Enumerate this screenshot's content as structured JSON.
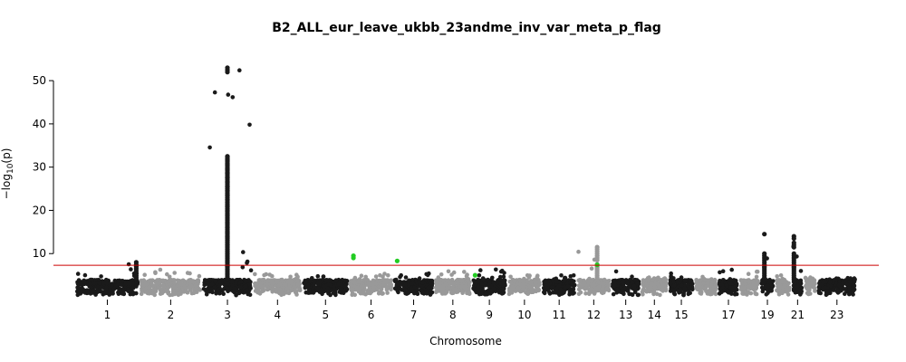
{
  "chart_data": {
    "type": "scatter",
    "title": "B2_ALL_eur_leave_ukbb_23andme_inv_var_meta_p_flag",
    "xlabel": "Chromosome",
    "ylabel_prefix": "−log",
    "ylabel_sub": "10",
    "ylabel_suffix": "(p)",
    "ylim": [
      0,
      54
    ],
    "yticks": [
      10,
      20,
      30,
      40,
      50
    ],
    "significance_threshold": 7.3,
    "threshold_color": "#cc0000",
    "colors": {
      "dark": "#1a1a1a",
      "light": "#999999",
      "flagged": "#22cc22"
    },
    "chromosomes": [
      {
        "chr": "1",
        "start": 0,
        "end": 249,
        "label": "1",
        "shade": "dark",
        "max": 8.0
      },
      {
        "chr": "2",
        "start": 249,
        "end": 491,
        "label": "2",
        "shade": "light",
        "max": 6.5
      },
      {
        "chr": "3",
        "start": 491,
        "end": 689,
        "label": "3",
        "shade": "dark",
        "max": 53.0
      },
      {
        "chr": "4",
        "start": 689,
        "end": 879,
        "label": "4",
        "shade": "light",
        "max": 5.5
      },
      {
        "chr": "5",
        "start": 879,
        "end": 1061,
        "label": "5",
        "shade": "dark",
        "max": 5.5
      },
      {
        "chr": "6",
        "start": 1061,
        "end": 1232,
        "label": "6",
        "shade": "light",
        "max": 5.5
      },
      {
        "chr": "7",
        "start": 1232,
        "end": 1391,
        "label": "7",
        "shade": "dark",
        "max": 5.5
      },
      {
        "chr": "8",
        "start": 1391,
        "end": 1536,
        "label": "8",
        "shade": "light",
        "max": 6.0
      },
      {
        "chr": "9",
        "start": 1536,
        "end": 1674,
        "label": "9",
        "shade": "dark",
        "max": 6.5
      },
      {
        "chr": "10",
        "start": 1674,
        "end": 1808,
        "label": "10",
        "shade": "light",
        "max": 5.0
      },
      {
        "chr": "11",
        "start": 1808,
        "end": 1943,
        "label": "11",
        "shade": "dark",
        "max": 5.0
      },
      {
        "chr": "12",
        "start": 1943,
        "end": 2076,
        "label": "12",
        "shade": "light",
        "max": 11.5
      },
      {
        "chr": "13",
        "start": 2076,
        "end": 2191,
        "label": "13",
        "shade": "dark",
        "max": 6.0
      },
      {
        "chr": "14",
        "start": 2191,
        "end": 2298,
        "label": "14",
        "shade": "light",
        "max": 4.5
      },
      {
        "chr": "15",
        "start": 2298,
        "end": 2400,
        "label": "15",
        "shade": "dark",
        "max": 5.5
      },
      {
        "chr": "16",
        "start": 2400,
        "end": 2490,
        "label": "",
        "shade": "light",
        "max": 5.0
      },
      {
        "chr": "17",
        "start": 2490,
        "end": 2573,
        "label": "17",
        "shade": "dark",
        "max": 6.5
      },
      {
        "chr": "18",
        "start": 2573,
        "end": 2653,
        "label": "",
        "shade": "light",
        "max": 6.0
      },
      {
        "chr": "19",
        "start": 2653,
        "end": 2712,
        "label": "19",
        "shade": "dark",
        "max": 14.5
      },
      {
        "chr": "20",
        "start": 2712,
        "end": 2776,
        "label": "",
        "shade": "light",
        "max": 5.5
      },
      {
        "chr": "21",
        "start": 2776,
        "end": 2823,
        "label": "21",
        "shade": "dark",
        "max": 14.0
      },
      {
        "chr": "22",
        "start": 2823,
        "end": 2874,
        "label": "",
        "shade": "light",
        "max": 4.5
      },
      {
        "chr": "23",
        "start": 2874,
        "end": 3030,
        "label": "23",
        "shade": "dark",
        "max": 4.5
      }
    ],
    "peaks": [
      {
        "chr": "1",
        "pos": 0.95,
        "pvals": [
          8.0,
          7.5,
          7.0,
          6.5,
          6.0,
          5.5
        ]
      },
      {
        "chr": "3",
        "pos": 0.5,
        "pvals": [
          53.0,
          52.5,
          52.0,
          32.5,
          31.5,
          30.5,
          29.5,
          28.5,
          27.5,
          26.5,
          25.5,
          24.5,
          23.5,
          22.5,
          21.0,
          20.0,
          19.0,
          18.0,
          17.0,
          16.0,
          15.0,
          14.0,
          13.0,
          12.0,
          11.0,
          10.0,
          9.0,
          8.0,
          7.0
        ]
      },
      {
        "chr": "12",
        "pos": 0.6,
        "pvals": [
          11.5,
          11.0,
          10.5,
          10.0,
          9.5,
          9.0,
          8.5,
          7.5,
          7.0
        ]
      },
      {
        "chr": "19",
        "pos": 0.3,
        "pvals": [
          14.5,
          10.0,
          9.5,
          9.0,
          8.5,
          8.0,
          7.5,
          7.0
        ]
      },
      {
        "chr": "21",
        "pos": 0.2,
        "pvals": [
          14.0,
          13.5,
          12.5,
          12.0,
          11.5,
          10.0,
          9.5,
          9.0,
          8.5,
          8.0,
          7.5,
          7.0
        ]
      }
    ],
    "flagged_points": [
      {
        "chr": "6",
        "pos": 0.1,
        "p": 9.5
      },
      {
        "chr": "6",
        "pos": 0.1,
        "p": 9.0
      },
      {
        "chr": "7",
        "pos": 0.1,
        "p": 8.3
      },
      {
        "chr": "9",
        "pos": 0.1,
        "p": 5.0
      },
      {
        "chr": "12",
        "pos": 0.6,
        "p": 7.4
      }
    ]
  }
}
